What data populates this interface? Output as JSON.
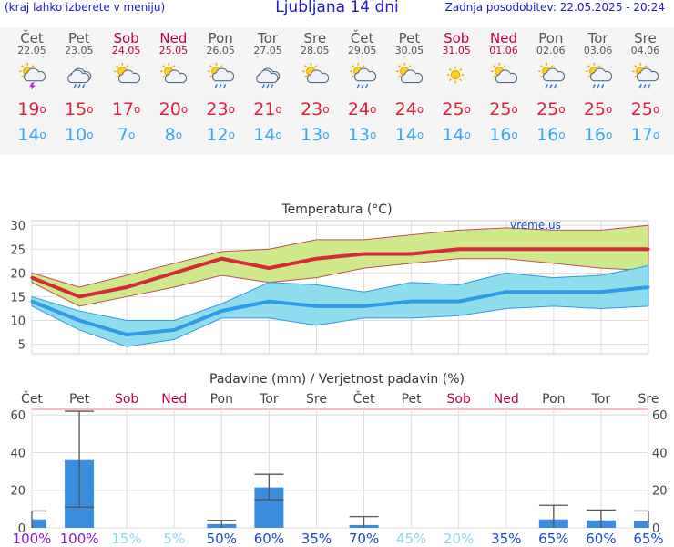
{
  "header": {
    "hint": "(kraj lahko izberete v meniju)",
    "title": "Ljubljana 14 dni",
    "update": "Zadnja posodobitev: 22.05.2025 - 20:24"
  },
  "days": [
    {
      "name": "Čet",
      "date": "22.05",
      "weekend": false,
      "icon": "sun-cloud-thunder-icon",
      "max": "19",
      "min": "14"
    },
    {
      "name": "Pet",
      "date": "23.05",
      "weekend": false,
      "icon": "cloud-rain-icon",
      "max": "15",
      "min": "10"
    },
    {
      "name": "Sob",
      "date": "24.05",
      "weekend": true,
      "icon": "sun-cloud-icon",
      "max": "17",
      "min": "7"
    },
    {
      "name": "Ned",
      "date": "25.05",
      "weekend": true,
      "icon": "sun-cloud-icon",
      "max": "20",
      "min": "8"
    },
    {
      "name": "Pon",
      "date": "26.05",
      "weekend": false,
      "icon": "sun-cloud-rain-icon",
      "max": "23",
      "min": "12"
    },
    {
      "name": "Tor",
      "date": "27.05",
      "weekend": false,
      "icon": "cloud-rain-icon",
      "max": "21",
      "min": "14"
    },
    {
      "name": "Sre",
      "date": "28.05",
      "weekend": false,
      "icon": "sun-cloud-icon",
      "max": "23",
      "min": "13"
    },
    {
      "name": "Čet",
      "date": "29.05",
      "weekend": false,
      "icon": "sun-cloud-rain-icon",
      "max": "24",
      "min": "13"
    },
    {
      "name": "Pet",
      "date": "30.05",
      "weekend": false,
      "icon": "sun-cloud-icon",
      "max": "24",
      "min": "14"
    },
    {
      "name": "Sob",
      "date": "31.05",
      "weekend": true,
      "icon": "sun-icon",
      "max": "25",
      "min": "14"
    },
    {
      "name": "Ned",
      "date": "01.06",
      "weekend": true,
      "icon": "sun-cloud-icon",
      "max": "25",
      "min": "16"
    },
    {
      "name": "Pon",
      "date": "02.06",
      "weekend": false,
      "icon": "sun-cloud-rain-icon",
      "max": "25",
      "min": "16"
    },
    {
      "name": "Tor",
      "date": "03.06",
      "weekend": false,
      "icon": "sun-cloud-rain-icon",
      "max": "25",
      "min": "16"
    },
    {
      "name": "Sre",
      "date": "04.06",
      "weekend": false,
      "icon": "sun-cloud-rain-icon",
      "max": "25",
      "min": "17"
    }
  ],
  "colors": {
    "max_line": "#d42a3a",
    "min_line": "#2f9be8",
    "max_band": "#cfe88a",
    "min_band": "#8fdcec",
    "bar": "#3b8de0",
    "grid": "#dddddd",
    "weekend": "#c00040",
    "prob_high": "#8a1ad0",
    "prob_mid": "#1a4ad0",
    "prob_low": "#8ad8f0"
  },
  "chart_data": [
    {
      "type": "line",
      "title": "Temperatura (°C)",
      "watermark": "vreme.us",
      "categories": [
        "22.05",
        "23.05",
        "24.05",
        "25.05",
        "26.05",
        "27.05",
        "28.05",
        "29.05",
        "30.05",
        "31.05",
        "01.06",
        "02.06",
        "03.06",
        "04.06"
      ],
      "yticks": [
        "5",
        "10",
        "15",
        "20",
        "25",
        "30"
      ],
      "ylim": [
        3,
        31
      ],
      "series": [
        {
          "name": "max",
          "values": [
            19,
            15,
            17,
            20,
            23,
            21,
            23,
            24,
            24,
            25,
            25,
            25,
            25,
            25
          ],
          "band_low": [
            18,
            13,
            15,
            17,
            19.5,
            18,
            19,
            21,
            22,
            23,
            23,
            22,
            21,
            20.5
          ],
          "band_high": [
            20,
            17,
            19.5,
            22,
            24.5,
            25,
            27,
            27,
            28,
            29,
            29.5,
            29,
            29,
            30
          ]
        },
        {
          "name": "min",
          "values": [
            14,
            10,
            7,
            8,
            12,
            14,
            13,
            13,
            14,
            14,
            16,
            16,
            16,
            17
          ],
          "band_low": [
            13,
            8,
            4.5,
            6,
            10.5,
            10.5,
            9,
            10.5,
            10.5,
            11,
            12.5,
            13,
            12.5,
            13
          ],
          "band_high": [
            15,
            12,
            10,
            10,
            13.5,
            18,
            17.5,
            16,
            18,
            17.5,
            20,
            19,
            19.5,
            21.5
          ]
        }
      ]
    },
    {
      "type": "bar",
      "title": "Padavine (mm) / Verjetnost padavin (%)",
      "categories": [
        "Čet",
        "Pet",
        "Sob",
        "Ned",
        "Pon",
        "Tor",
        "Sre",
        "Čet",
        "Pet",
        "Sob",
        "Ned",
        "Pon",
        "Tor",
        "Sre"
      ],
      "weekend": [
        false,
        false,
        true,
        true,
        false,
        false,
        false,
        false,
        false,
        true,
        true,
        false,
        false,
        false
      ],
      "yticks": [
        "0",
        "20",
        "40",
        "60"
      ],
      "ylim": [
        0,
        63
      ],
      "values": [
        4.5,
        36,
        0,
        0,
        2,
        21.5,
        0,
        1.5,
        0,
        0,
        0,
        4.5,
        4,
        3.5
      ],
      "err_low": [
        0,
        11,
        0,
        0,
        0,
        15,
        0,
        0,
        0,
        0,
        0,
        0,
        0,
        0
      ],
      "err_high": [
        9,
        62,
        0,
        0,
        4,
        28.5,
        0,
        6,
        0,
        0,
        0,
        12,
        9.5,
        9
      ],
      "probability": [
        "100%",
        "100%",
        "15%",
        "5%",
        "50%",
        "60%",
        "35%",
        "70%",
        "45%",
        "20%",
        "35%",
        "65%",
        "60%",
        "65%"
      ],
      "prob_values": [
        100,
        100,
        15,
        5,
        50,
        60,
        35,
        70,
        45,
        20,
        35,
        65,
        60,
        65
      ]
    }
  ]
}
